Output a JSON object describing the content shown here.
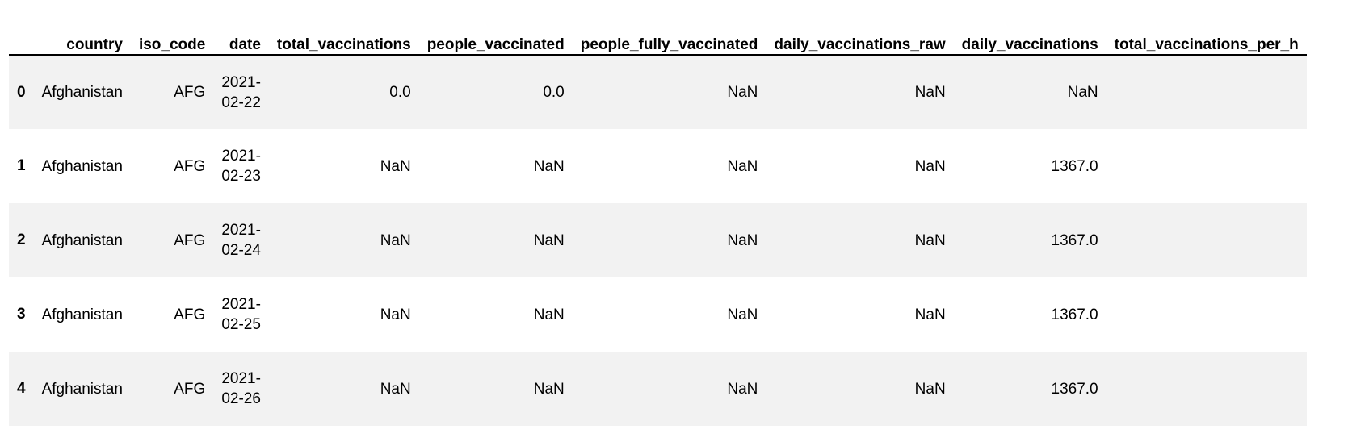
{
  "table": {
    "columns": [
      "",
      "country",
      "iso_code",
      "date",
      "total_vaccinations",
      "people_vaccinated",
      "people_fully_vaccinated",
      "daily_vaccinations_raw",
      "daily_vaccinations",
      "total_vaccinations_per_h"
    ],
    "rows": [
      {
        "index": "0",
        "country": "Afghanistan",
        "iso_code": "AFG",
        "date_part1": "2021-",
        "date_part2": "02-22",
        "total_vaccinations": "0.0",
        "people_vaccinated": "0.0",
        "people_fully_vaccinated": "NaN",
        "daily_vaccinations_raw": "NaN",
        "daily_vaccinations": "NaN",
        "total_vaccinations_per_h": ""
      },
      {
        "index": "1",
        "country": "Afghanistan",
        "iso_code": "AFG",
        "date_part1": "2021-",
        "date_part2": "02-23",
        "total_vaccinations": "NaN",
        "people_vaccinated": "NaN",
        "people_fully_vaccinated": "NaN",
        "daily_vaccinations_raw": "NaN",
        "daily_vaccinations": "1367.0",
        "total_vaccinations_per_h": ""
      },
      {
        "index": "2",
        "country": "Afghanistan",
        "iso_code": "AFG",
        "date_part1": "2021-",
        "date_part2": "02-24",
        "total_vaccinations": "NaN",
        "people_vaccinated": "NaN",
        "people_fully_vaccinated": "NaN",
        "daily_vaccinations_raw": "NaN",
        "daily_vaccinations": "1367.0",
        "total_vaccinations_per_h": ""
      },
      {
        "index": "3",
        "country": "Afghanistan",
        "iso_code": "AFG",
        "date_part1": "2021-",
        "date_part2": "02-25",
        "total_vaccinations": "NaN",
        "people_vaccinated": "NaN",
        "people_fully_vaccinated": "NaN",
        "daily_vaccinations_raw": "NaN",
        "daily_vaccinations": "1367.0",
        "total_vaccinations_per_h": ""
      },
      {
        "index": "4",
        "country": "Afghanistan",
        "iso_code": "AFG",
        "date_part1": "2021-",
        "date_part2": "02-26",
        "total_vaccinations": "NaN",
        "people_vaccinated": "NaN",
        "people_fully_vaccinated": "NaN",
        "daily_vaccinations_raw": "NaN",
        "daily_vaccinations": "1367.0",
        "total_vaccinations_per_h": ""
      }
    ]
  },
  "colors": {
    "stripe": "#f2f2f2",
    "header_rule": "#000000",
    "text": "#000000"
  }
}
